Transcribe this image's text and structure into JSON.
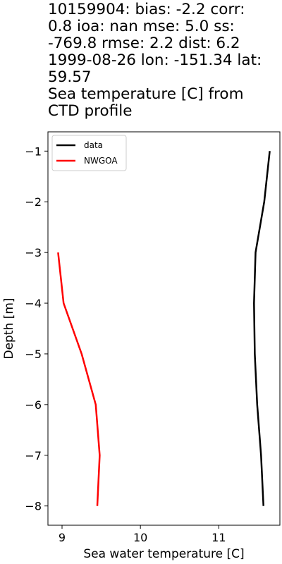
{
  "title_lines": [
    "10159904: bias: -2.2  corr:",
    "0.8  ioa: nan  mse: 5.0  ss:",
    "-769.8  rmse: 2.2  dist: 6.2",
    "1999-08-26 lon: -151.34 lat:",
    "59.57",
    "Sea temperature [C] from",
    "CTD profile"
  ],
  "chart_data": {
    "type": "line",
    "xlabel": "Sea water temperature [C]",
    "ylabel": "Depth [m]",
    "xlim": [
      8.82,
      11.78
    ],
    "ylim": [
      -8.38,
      -0.62
    ],
    "xticks": [
      9,
      10,
      11
    ],
    "xtick_labels": [
      "9",
      "10",
      "11"
    ],
    "yticks": [
      -1,
      -2,
      -3,
      -4,
      -5,
      -6,
      -7,
      -8
    ],
    "ytick_labels": [
      "−1",
      "−2",
      "−3",
      "−4",
      "−5",
      "−6",
      "−7",
      "−8"
    ],
    "grid": false,
    "legend_position": "upper-left",
    "series": [
      {
        "name": "data",
        "color": "#000000",
        "points": [
          [
            11.65,
            -1
          ],
          [
            11.58,
            -2
          ],
          [
            11.47,
            -3
          ],
          [
            11.45,
            -4
          ],
          [
            11.46,
            -5
          ],
          [
            11.49,
            -6
          ],
          [
            11.54,
            -7
          ],
          [
            11.57,
            -8
          ]
        ]
      },
      {
        "name": "NWGOA",
        "color": "#ff0000",
        "points": [
          [
            8.95,
            -3
          ],
          [
            9.02,
            -4
          ],
          [
            9.25,
            -5
          ],
          [
            9.43,
            -6
          ],
          [
            9.48,
            -7
          ],
          [
            9.45,
            -8
          ]
        ]
      }
    ]
  }
}
